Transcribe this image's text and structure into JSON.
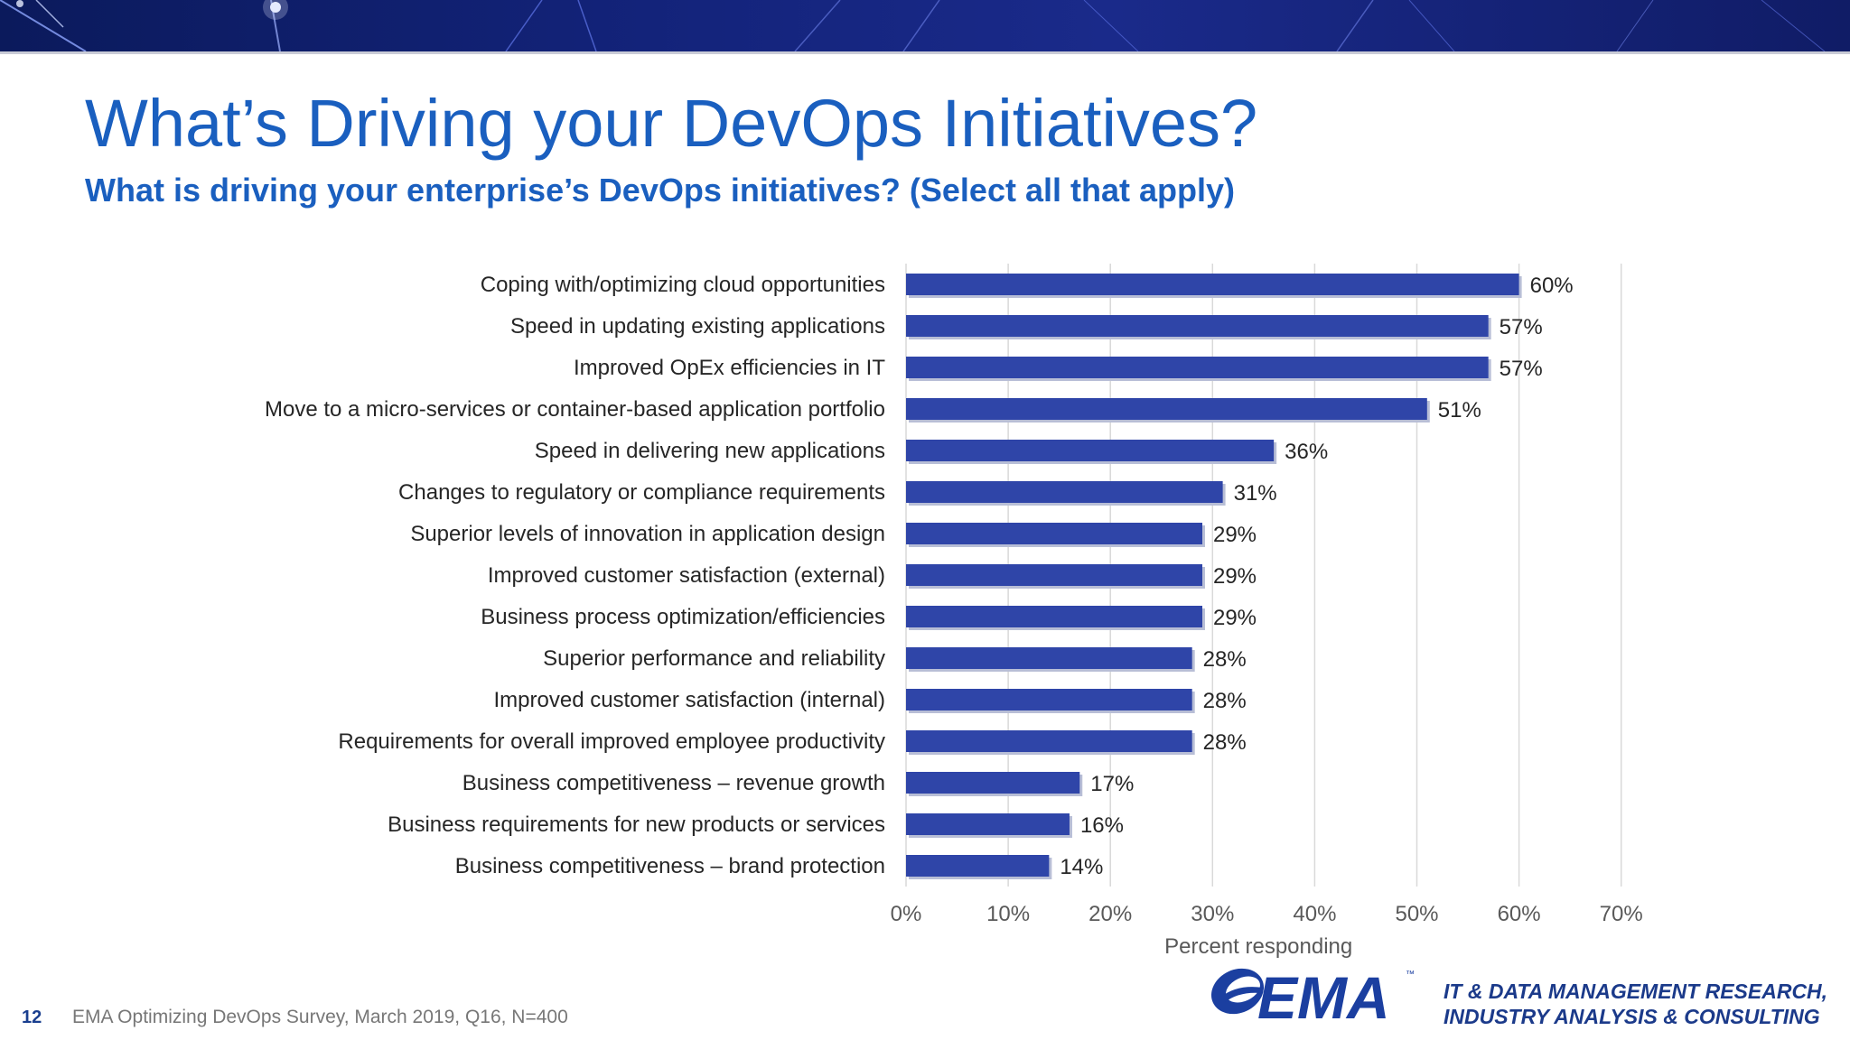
{
  "slide": {
    "title": "What’s Driving your DevOps Initiatives?",
    "subtitle": "What is driving your enterprise’s DevOps initiatives?  (Select all that apply)",
    "page_number": "12",
    "source": "EMA  Optimizing DevOps Survey, March 2019, Q16, N=400",
    "tagline_line1": "IT & DATA MANAGEMENT RESEARCH,",
    "tagline_line2": "INDUSTRY ANALYSIS & CONSULTING",
    "logo_text": "EMA",
    "logo_tm": "™"
  },
  "colors": {
    "bar": "#2f45a8",
    "bar_shadow": "#b8bed6",
    "gridline": "#d9d9d9",
    "title": "#1a5fbf",
    "axis_text": "#595959",
    "label_text": "#262626",
    "logo": "#1b3fa0"
  },
  "chart_data": {
    "type": "bar",
    "orientation": "horizontal",
    "categories": [
      "Coping with/optimizing cloud opportunities",
      "Speed in updating existing applications",
      "Improved OpEx efficiencies in IT",
      "Move to a micro-services or container-based application portfolio",
      "Speed in delivering new applications",
      "Changes to regulatory or compliance requirements",
      "Superior levels of innovation in application design",
      "Improved customer satisfaction (external)",
      "Business process optimization/efficiencies",
      "Superior performance and reliability",
      "Improved customer satisfaction (internal)",
      "Requirements for overall improved employee productivity",
      "Business competitiveness – revenue growth",
      "Business requirements for new products or services",
      "Business competitiveness – brand protection"
    ],
    "values": [
      60,
      57,
      57,
      51,
      36,
      31,
      29,
      29,
      29,
      28,
      28,
      28,
      17,
      16,
      14
    ],
    "data_labels": [
      "60%",
      "57%",
      "57%",
      "51%",
      "36%",
      "31%",
      "29%",
      "29%",
      "29%",
      "28%",
      "28%",
      "28%",
      "17%",
      "16%",
      "14%"
    ],
    "x_ticks": [
      "0%",
      "10%",
      "20%",
      "30%",
      "40%",
      "50%",
      "60%",
      "70%"
    ],
    "xlim": [
      0,
      70
    ],
    "xlabel": "Percent responding",
    "ylabel": "",
    "grid": true,
    "legend": "none"
  }
}
